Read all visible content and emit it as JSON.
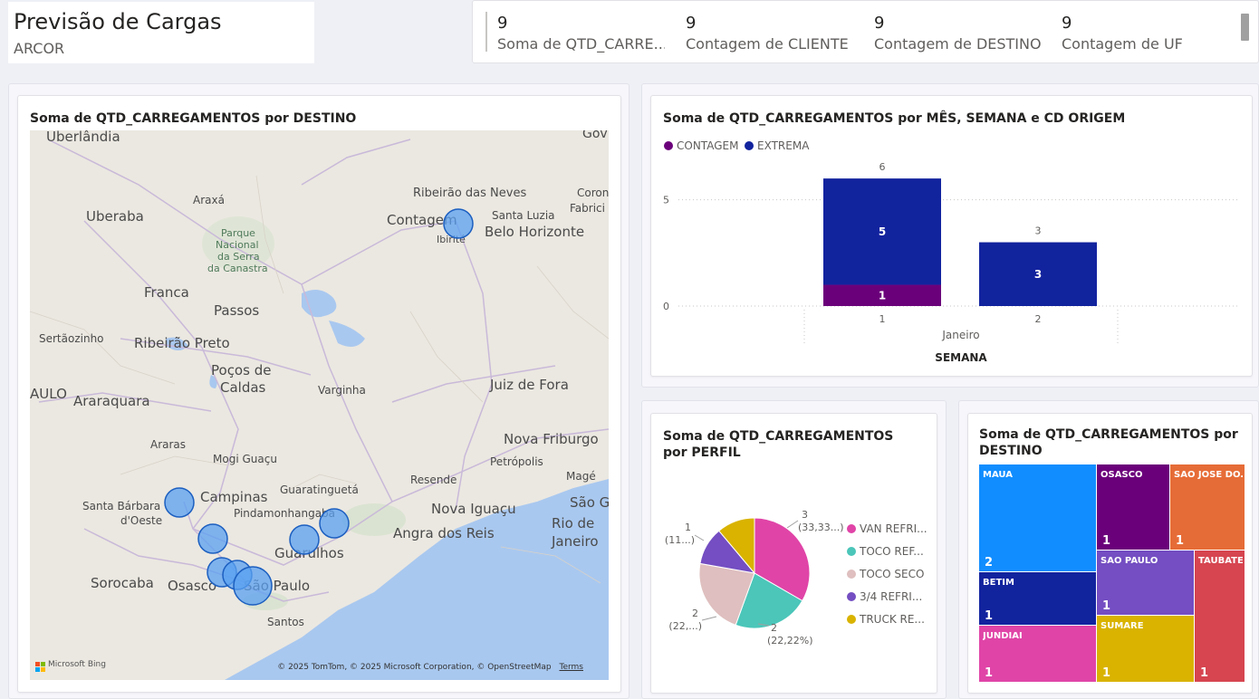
{
  "header": {
    "title": "Previsão de Cargas",
    "subtitle": "ARCOR"
  },
  "kpis": [
    {
      "value": "9",
      "label": "Soma de QTD_CARRE..."
    },
    {
      "value": "9",
      "label": "Contagem de CLIENTE"
    },
    {
      "value": "9",
      "label": "Contagem de DESTINO"
    },
    {
      "value": "9",
      "label": "Contagem de UF"
    }
  ],
  "map_card": {
    "title": "Soma de QTD_CARREGAMENTOS por DESTINO",
    "places": [
      "Uberlândia",
      "Ribeirão das Neves",
      "Araxá",
      "Uberaba",
      "Parque",
      "Nacional",
      "da Serra",
      "da Canastra",
      "Contagem",
      "Santa Luzia",
      "Belo Horizonte",
      "Ibirité",
      "Franca",
      "Passos",
      "Sertãozinho",
      "Ribeirão Preto",
      "Poços de",
      "Caldas",
      "Juiz de Fora",
      "Varginha",
      "AULO",
      "Araraquara",
      "Nova Friburgo",
      "Araras",
      "Mogi Guaçu",
      "Petrópolis",
      "Magé",
      "Resende",
      "Guaratinguetá",
      "Campinas",
      "Santa Bárbara",
      "d'Oeste",
      "Pindamonhangaba",
      "Nova Iguaçu",
      "São G",
      "Rio de",
      "Janeiro",
      "Angra dos Reis",
      "Guarulhos",
      "Sorocaba",
      "Osasco",
      "São Paulo",
      "Santos",
      "Gov",
      "Coron",
      "Fabrici"
    ],
    "attribution": "© 2025 TomTom, © 2025 Microsoft Corporation, © OpenStreetMap",
    "terms": "Terms",
    "brand": "Microsoft Bing",
    "bubble_color": "#5aa0f0"
  },
  "bar_card": {
    "title": "Soma de QTD_CARREGAMENTOS por MÊS, SEMANA e CD ORIGEM",
    "legend": [
      {
        "name": "CONTAGEM",
        "color": "#6b007b"
      },
      {
        "name": "EXTREMA",
        "color": "#12239e"
      }
    ],
    "month": "Janeiro",
    "xlabel": "SEMANA"
  },
  "chart_data": {
    "type": "bar",
    "stacked": true,
    "categories": [
      "1",
      "2"
    ],
    "series": [
      {
        "name": "CONTAGEM",
        "values": [
          1,
          0
        ]
      },
      {
        "name": "EXTREMA",
        "values": [
          5,
          3
        ]
      }
    ],
    "totals": [
      6,
      3
    ],
    "yticks": [
      0,
      5
    ],
    "ylim": [
      0,
      6.9
    ],
    "grid": true,
    "legend": "top-left"
  },
  "pie_card": {
    "title": "Soma de QTD_CARREGAMENTOS por PERFIL",
    "slices": [
      {
        "name": "VAN REFRI...",
        "value": 3,
        "label_value": "3",
        "label_pct": "(33,33...)",
        "color": "#e044a7"
      },
      {
        "name": "TOCO REF...",
        "value": 2,
        "label_value": "2",
        "label_pct": "(22,22%)",
        "color": "#4bc6b9"
      },
      {
        "name": "TOCO SECO",
        "value": 2,
        "label_value": "2",
        "label_pct": "(22,...)",
        "color": "#dfbfbf"
      },
      {
        "name": "3/4 REFRI...",
        "value": 1,
        "label_value": "1",
        "label_pct": "(11...)",
        "color": "#744ec2"
      },
      {
        "name": "TRUCK RE...",
        "value": 1,
        "label_value": "",
        "label_pct": "",
        "color": "#d9b300"
      }
    ]
  },
  "treemap_card": {
    "title": "Soma de QTD_CARREGAMENTOS por DESTINO",
    "cells": [
      {
        "name": "MAUA",
        "value": "2",
        "color": "#118dff"
      },
      {
        "name": "OSASCO",
        "value": "1",
        "color": "#6b007b"
      },
      {
        "name": "SAO JOSE DO...",
        "value": "1",
        "color": "#e66c37"
      },
      {
        "name": "SAO PAULO",
        "value": "1",
        "color": "#744ec2"
      },
      {
        "name": "TAUBATE",
        "value": "1",
        "color": "#d64550"
      },
      {
        "name": "BETIM",
        "value": "1",
        "color": "#12239e"
      },
      {
        "name": "SUMARE",
        "value": "1",
        "color": "#d9b300"
      },
      {
        "name": "JUNDIAI",
        "value": "1",
        "color": "#e044a7"
      }
    ]
  }
}
